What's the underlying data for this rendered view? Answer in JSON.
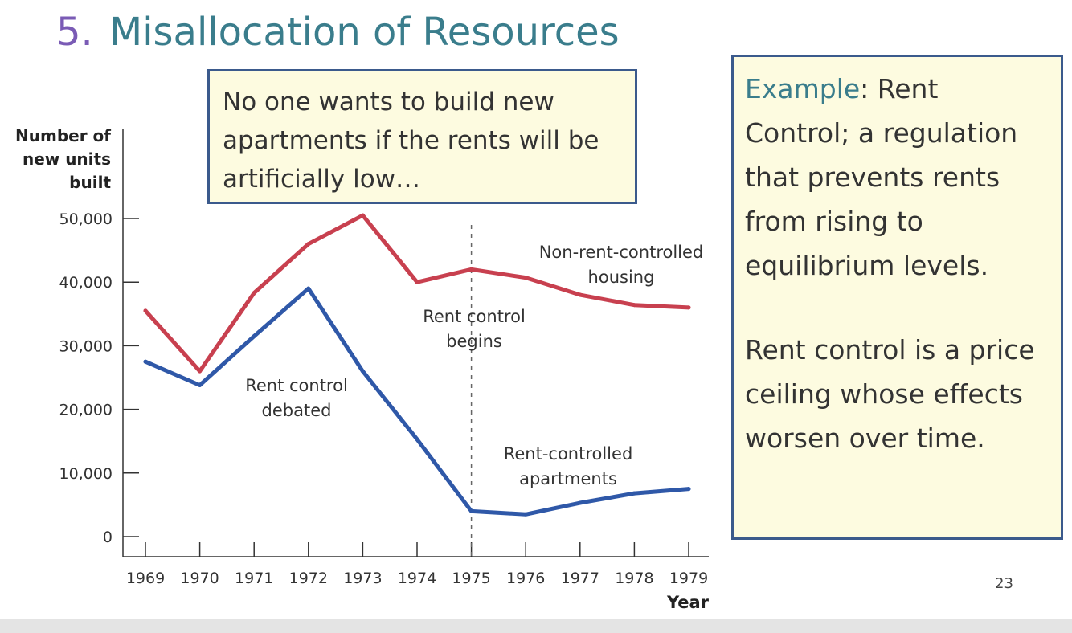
{
  "slide": {
    "title_number": "5.",
    "title_text": "Misallocation of Resources",
    "callout_left": "No one wants to build new apartments if the rents will be artificially low…",
    "callout_right": {
      "line1_accent": "Example",
      "line1_rest": ": Rent Control; a regulation that prevents rents from rising to equilibrium levels.",
      "paragraph2": "Rent control is a price ceiling whose effects worsen over time."
    },
    "page_number": "23"
  },
  "chart_data": {
    "type": "line",
    "ylabel_lines": [
      "Number of",
      "new units",
      "built"
    ],
    "xlabel": "Year",
    "x": [
      1969,
      1970,
      1971,
      1972,
      1973,
      1974,
      1975,
      1976,
      1977,
      1978,
      1979
    ],
    "ylim": [
      0,
      50000
    ],
    "yticks": [
      0,
      10000,
      20000,
      30000,
      40000,
      50000
    ],
    "ytick_labels": [
      "0",
      "10,000",
      "20,000",
      "30,000",
      "40,000",
      "50,000"
    ],
    "series": [
      {
        "name": "Non-rent-controlled housing",
        "label_lines": [
          "Non-rent-controlled",
          "housing"
        ],
        "color": "#c8404f",
        "values": [
          35500,
          26000,
          38300,
          46000,
          50500,
          40000,
          42000,
          40700,
          38000,
          36400,
          36000
        ]
      },
      {
        "name": "Rent-controlled apartments",
        "label_lines": [
          "Rent-controlled",
          "apartments"
        ],
        "color": "#2f58a8",
        "values": [
          27500,
          23800,
          31500,
          39000,
          26000,
          15300,
          4000,
          3500,
          5300,
          6800,
          7500
        ]
      }
    ],
    "annotations": [
      {
        "name": "rent-control-debated",
        "lines": [
          "Rent control",
          "debated"
        ]
      },
      {
        "name": "rent-control-begins",
        "lines": [
          "Rent control",
          "begins"
        ],
        "at_x": 1975
      }
    ]
  }
}
